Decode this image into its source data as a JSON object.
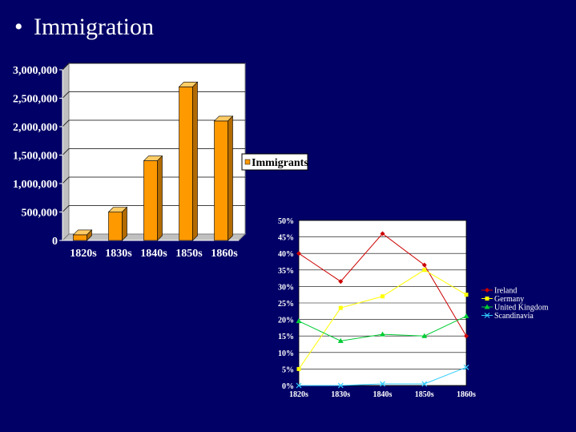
{
  "slide": {
    "bullet": "•",
    "title": "Immigration"
  },
  "chart_data": [
    {
      "type": "bar",
      "categories": [
        "1820s",
        "1830s",
        "1840s",
        "1850s",
        "1860s"
      ],
      "series": [
        {
          "name": "Immigrants",
          "values": [
            100000,
            500000,
            1400000,
            2700000,
            2100000
          ]
        }
      ],
      "ylim": [
        0,
        3000000
      ],
      "ytick_labels": [
        "0",
        "500,000",
        "1,000,000",
        "1,500,000",
        "2,000,000",
        "2,500,000",
        "3,000,000"
      ],
      "bar_color": "#ff9900",
      "legend": "right",
      "grid": true
    },
    {
      "type": "line",
      "categories": [
        "1820s",
        "1830s",
        "1840s",
        "1850s",
        "1860s"
      ],
      "series": [
        {
          "name": "Ireland",
          "values": [
            40,
            31.5,
            46,
            36.5,
            15
          ],
          "color": "#cc0000"
        },
        {
          "name": "Germany",
          "values": [
            5,
            23.5,
            27,
            35,
            27.5
          ],
          "color": "#ffff00"
        },
        {
          "name": "United Kingdom",
          "values": [
            19.5,
            13.5,
            15.5,
            15,
            21
          ],
          "color": "#00cc33"
        },
        {
          "name": "Scandinavia",
          "values": [
            0,
            0,
            0.5,
            0.5,
            5.5
          ],
          "color": "#33ccff"
        }
      ],
      "ylim": [
        0,
        50
      ],
      "ytick_labels": [
        "0%",
        "5%",
        "10%",
        "15%",
        "20%",
        "25%",
        "30%",
        "35%",
        "40%",
        "45%",
        "50%"
      ],
      "legend": "right",
      "grid": true
    }
  ]
}
